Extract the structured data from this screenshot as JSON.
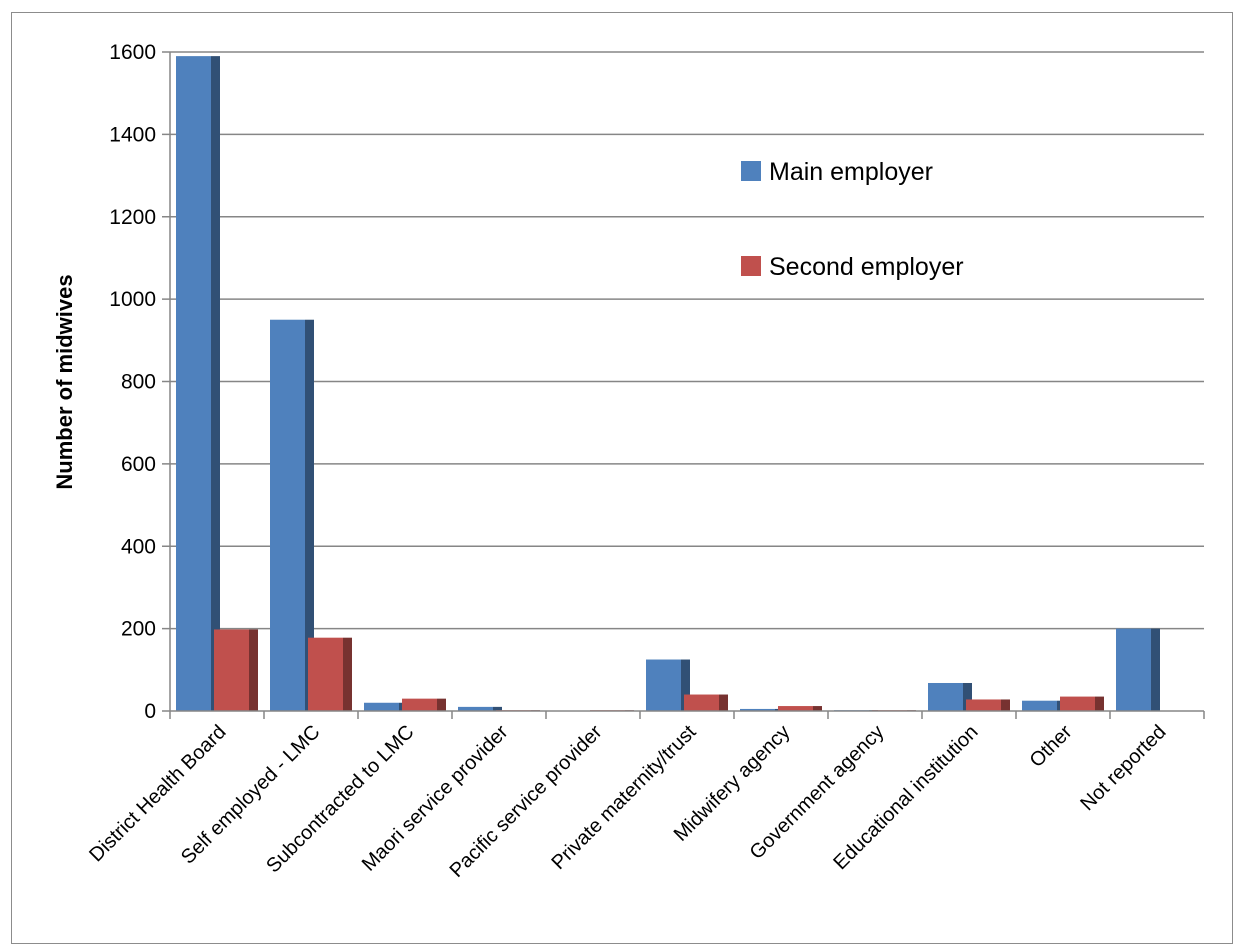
{
  "chart_data": {
    "type": "bar",
    "title": "",
    "xlabel": "",
    "ylabel": "Number of midwives",
    "ylim": [
      0,
      1600
    ],
    "yticks": [
      0,
      200,
      400,
      600,
      800,
      1000,
      1200,
      1400,
      1600
    ],
    "grid": true,
    "legend_position": "top-right",
    "categories": [
      "District Health Board",
      "Self employed - LMC",
      "Subcontracted to LMC",
      "Maori service provider",
      "Pacific service provider",
      "Private maternity/trust",
      "Midwifery agency",
      "Government agency",
      "Educational institution",
      "Other",
      "Not reported"
    ],
    "series": [
      {
        "name": "Main employer",
        "color": "#4f81bd",
        "values": [
          1590,
          950,
          20,
          10,
          0,
          125,
          5,
          2,
          68,
          25,
          200
        ]
      },
      {
        "name": "Second employer",
        "color": "#c0504d",
        "values": [
          198,
          178,
          30,
          2,
          2,
          40,
          12,
          2,
          28,
          35,
          0
        ]
      }
    ]
  }
}
